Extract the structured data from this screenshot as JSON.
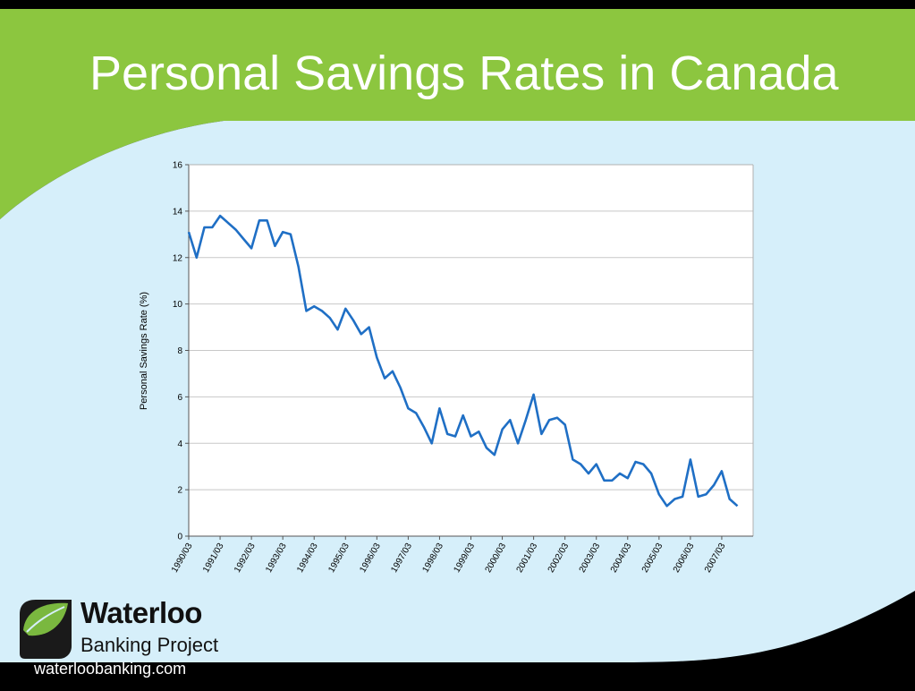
{
  "slide": {
    "title": "Personal Savings Rates in Canada",
    "colors": {
      "header_green": "#8cc63f",
      "background_light_blue": "#d6effa",
      "frame_black": "#000000",
      "line_blue": "#1f6fc5",
      "leaf_green": "#7ab83f"
    }
  },
  "logo": {
    "name": "Waterloo",
    "subtitle": "Banking Project",
    "url": "waterloobanking.com",
    "icon": "leaf-logo-icon"
  },
  "chart_data": {
    "type": "line",
    "ylabel": "Personal Savings Rate (%)",
    "xlabel": "",
    "ylim": [
      0,
      16
    ],
    "yticks": [
      "0",
      "2",
      "4",
      "6",
      "8",
      "10",
      "12",
      "14",
      "16"
    ],
    "xlim": [
      1990.0,
      2008.0
    ],
    "grid": "horizontal",
    "legend": "none",
    "xtick_labels": [
      "1990/03",
      "1991/03",
      "1992/03",
      "1993/03",
      "1994/03",
      "1995/03",
      "1996/03",
      "1997/03",
      "1998/03",
      "1999/03",
      "2000/03",
      "2001/03",
      "2002/03",
      "2003/03",
      "2004/03",
      "2005/03",
      "2006/03",
      "2007/03"
    ],
    "series": [
      {
        "values": [
          [
            1990.0,
            13.1
          ],
          [
            1990.25,
            12.0
          ],
          [
            1990.5,
            13.3
          ],
          [
            1990.75,
            13.3
          ],
          [
            1991.0,
            13.8
          ],
          [
            1991.25,
            13.5
          ],
          [
            1991.5,
            13.2
          ],
          [
            1991.75,
            12.8
          ],
          [
            1992.0,
            12.4
          ],
          [
            1992.25,
            13.6
          ],
          [
            1992.5,
            13.6
          ],
          [
            1992.75,
            12.5
          ],
          [
            1993.0,
            13.1
          ],
          [
            1993.25,
            13.0
          ],
          [
            1993.5,
            11.6
          ],
          [
            1993.75,
            9.7
          ],
          [
            1994.0,
            9.9
          ],
          [
            1994.25,
            9.7
          ],
          [
            1994.5,
            9.4
          ],
          [
            1994.75,
            8.9
          ],
          [
            1995.0,
            9.8
          ],
          [
            1995.25,
            9.3
          ],
          [
            1995.5,
            8.7
          ],
          [
            1995.75,
            9.0
          ],
          [
            1996.0,
            7.7
          ],
          [
            1996.25,
            6.8
          ],
          [
            1996.5,
            7.1
          ],
          [
            1996.75,
            6.4
          ],
          [
            1997.0,
            5.5
          ],
          [
            1997.25,
            5.3
          ],
          [
            1997.5,
            4.7
          ],
          [
            1997.75,
            4.0
          ],
          [
            1998.0,
            5.5
          ],
          [
            1998.25,
            4.4
          ],
          [
            1998.5,
            4.3
          ],
          [
            1998.75,
            5.2
          ],
          [
            1999.0,
            4.3
          ],
          [
            1999.25,
            4.5
          ],
          [
            1999.5,
            3.8
          ],
          [
            1999.75,
            3.5
          ],
          [
            2000.0,
            4.6
          ],
          [
            2000.25,
            5.0
          ],
          [
            2000.5,
            4.0
          ],
          [
            2000.75,
            5.0
          ],
          [
            2001.0,
            6.1
          ],
          [
            2001.25,
            4.4
          ],
          [
            2001.5,
            5.0
          ],
          [
            2001.75,
            5.1
          ],
          [
            2002.0,
            4.8
          ],
          [
            2002.25,
            3.3
          ],
          [
            2002.5,
            3.1
          ],
          [
            2002.75,
            2.7
          ],
          [
            2003.0,
            3.1
          ],
          [
            2003.25,
            2.4
          ],
          [
            2003.5,
            2.4
          ],
          [
            2003.75,
            2.7
          ],
          [
            2004.0,
            2.5
          ],
          [
            2004.25,
            3.2
          ],
          [
            2004.5,
            3.1
          ],
          [
            2004.75,
            2.7
          ],
          [
            2005.0,
            1.8
          ],
          [
            2005.25,
            1.3
          ],
          [
            2005.5,
            1.6
          ],
          [
            2005.75,
            1.7
          ],
          [
            2006.0,
            3.3
          ],
          [
            2006.25,
            1.7
          ],
          [
            2006.5,
            1.8
          ],
          [
            2006.75,
            2.2
          ],
          [
            2007.0,
            2.8
          ],
          [
            2007.25,
            1.6
          ],
          [
            2007.5,
            1.3
          ]
        ]
      }
    ]
  }
}
